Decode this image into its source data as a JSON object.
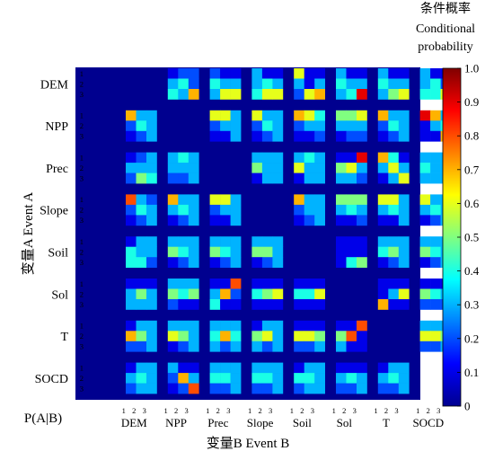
{
  "chart_data": {
    "type": "heatmap",
    "ylabel": "变量A Event A",
    "xlabel": "变量B Event B",
    "corner_label": "P(A|B)",
    "colorbar_title": [
      "条件概率",
      "Conditional",
      "probability"
    ],
    "colorbar_ticks": [
      "0",
      "0.1",
      "0.2",
      "0.3",
      "0.4",
      "0.5",
      "0.6",
      "0.7",
      "0.8",
      "0.9",
      "1.0"
    ],
    "value_range": [
      0,
      1
    ],
    "variables": [
      "DEM",
      "NPP",
      "Prec",
      "Slope",
      "Soil",
      "Sol",
      "T",
      "SOCD"
    ],
    "levels": [
      "1",
      "2",
      "3"
    ],
    "colormap": [
      "#00008f",
      "#0000ff",
      "#0080ff",
      "#00ffff",
      "#80ff80",
      "#ffff00",
      "#ff8000",
      "#ff0000",
      "#800000"
    ],
    "cells": [
      [
        null,
        [
          [
            0.1,
            0.2,
            0.2
          ],
          [
            0.3,
            0.4,
            0.2
          ],
          [
            0.4,
            0.3,
            0.7
          ]
        ],
        [
          [
            0.2,
            0.1,
            0.1
          ],
          [
            0.4,
            0.3,
            0.3
          ],
          [
            0.3,
            0.6,
            0.6
          ]
        ],
        [
          [
            0.3,
            0.1,
            0.1
          ],
          [
            0.3,
            0.4,
            0.3
          ],
          [
            0.4,
            0.6,
            0.6
          ]
        ],
        [
          [
            0.6,
            0.1,
            0.1
          ],
          [
            0.3,
            0.1,
            0.3
          ],
          [
            0.2,
            0.6,
            0.7
          ]
        ],
        [
          [
            0.3,
            0.1,
            0.1
          ],
          [
            0.4,
            0.3,
            0.3
          ],
          [
            0.3,
            0.4,
            0.9
          ]
        ],
        [
          [
            0.3,
            0.1,
            0.1
          ],
          [
            0.4,
            0.3,
            0.3
          ],
          [
            0.3,
            0.5,
            0.6
          ]
        ],
        [
          [
            0.3,
            0.1,
            0.1
          ],
          [
            0.3,
            0.4,
            0.2
          ],
          [
            0.4,
            0.4,
            0.6
          ]
        ]
      ],
      [
        [
          [
            0.7,
            0.3,
            0.3
          ],
          [
            0.2,
            0.4,
            0.3
          ],
          [
            0.1,
            0.2,
            0.3
          ]
        ],
        null,
        [
          [
            0.6,
            0.6,
            0.3
          ],
          [
            0.2,
            0.3,
            0.3
          ],
          [
            0.1,
            0.1,
            0.3
          ]
        ],
        [
          [
            0.6,
            0.3,
            0.3
          ],
          [
            0.2,
            0.4,
            0.3
          ],
          [
            0.1,
            0.2,
            0.3
          ]
        ],
        [
          [
            0.7,
            0.6,
            0.4
          ],
          [
            0.2,
            0.3,
            0.3
          ],
          [
            0.1,
            0.1,
            0.2
          ]
        ],
        [
          [
            0.5,
            0.5,
            0.6
          ],
          [
            0.3,
            0.3,
            0.3
          ],
          [
            0.1,
            0.2,
            0.2
          ]
        ],
        [
          [
            0.7,
            0.3,
            0.3
          ],
          [
            0.2,
            0.4,
            0.3
          ],
          [
            0.1,
            0.2,
            0.3
          ]
        ],
        [
          [
            0.9,
            0.7,
            0.3
          ],
          [
            0.1,
            0.3,
            0.4
          ],
          [
            0.1,
            0.1,
            0.7
          ]
        ]
      ],
      [
        [
          [
            0.1,
            0.2,
            0.3
          ],
          [
            0.3,
            0.3,
            0.3
          ],
          [
            0.2,
            0.5,
            0.4
          ]
        ],
        [
          [
            0.3,
            0.4,
            0.3
          ],
          [
            0.3,
            0.3,
            0.3
          ],
          [
            0.2,
            0.2,
            0.3
          ]
        ],
        null,
        [
          [
            0.3,
            0.3,
            0.3
          ],
          [
            0.5,
            0.3,
            0.3
          ],
          [
            0.1,
            0.3,
            0.3
          ]
        ],
        [
          [
            0.3,
            0.4,
            0.3
          ],
          [
            0.6,
            0.3,
            0.3
          ],
          [
            0.1,
            0.3,
            0.3
          ]
        ],
        [
          [
            0.1,
            0.1,
            0.9
          ],
          [
            0.5,
            0.6,
            0.3
          ],
          [
            0.3,
            0.3,
            0.2
          ]
        ],
        [
          [
            0.7,
            0.4,
            0.1
          ],
          [
            0.3,
            0.6,
            0.3
          ],
          [
            0.1,
            0.3,
            0.6
          ]
        ],
        [
          [
            0.3,
            0.3,
            0.3
          ],
          [
            0.4,
            0.3,
            0.3
          ],
          [
            0.3,
            0.3,
            0.3
          ]
        ]
      ],
      [
        [
          [
            0.8,
            0.3,
            0.2
          ],
          [
            0.2,
            0.4,
            0.3
          ],
          [
            0.1,
            0.2,
            0.3
          ]
        ],
        [
          [
            0.7,
            0.3,
            0.3
          ],
          [
            0.3,
            0.4,
            0.3
          ],
          [
            0.1,
            0.2,
            0.3
          ]
        ],
        [
          [
            0.6,
            0.6,
            0.3
          ],
          [
            0.2,
            0.3,
            0.3
          ],
          [
            0.1,
            0.1,
            0.3
          ]
        ],
        null,
        [
          [
            0.7,
            0.3,
            0.3
          ],
          [
            0.2,
            0.3,
            0.3
          ],
          [
            0.1,
            0.2,
            0.3
          ]
        ],
        [
          [
            0.5,
            0.5,
            0.5
          ],
          [
            0.3,
            0.4,
            0.3
          ],
          [
            0.1,
            0.1,
            0.2
          ]
        ],
        [
          [
            0.6,
            0.6,
            0.3
          ],
          [
            0.3,
            0.4,
            0.3
          ],
          [
            0.1,
            0.1,
            0.3
          ]
        ],
        [
          [
            0.6,
            0.3,
            0.3
          ],
          [
            0.3,
            0.4,
            0.3
          ],
          [
            0.1,
            0.2,
            0.3
          ]
        ]
      ],
      [
        [
          [
            0.1,
            0.3,
            0.3
          ],
          [
            0.4,
            0.3,
            0.3
          ],
          [
            0.4,
            0.4,
            0.2
          ]
        ],
        [
          [
            0.3,
            0.3,
            0.3
          ],
          [
            0.5,
            0.4,
            0.3
          ],
          [
            0.1,
            0.2,
            0.3
          ]
        ],
        [
          [
            0.3,
            0.3,
            0.3
          ],
          [
            0.5,
            0.4,
            0.3
          ],
          [
            0.1,
            0.2,
            0.3
          ]
        ],
        [
          [
            0.3,
            0.3,
            0.3
          ],
          [
            0.5,
            0.5,
            0.3
          ],
          [
            0.1,
            0.2,
            0.3
          ]
        ],
        null,
        [
          [
            0.1,
            0.1,
            0.1
          ],
          [
            0.1,
            0.1,
            0.1
          ],
          [
            0.1,
            0.4,
            0.5
          ]
        ],
        [
          [
            0.3,
            0.3,
            0.3
          ],
          [
            0.4,
            0.5,
            0.3
          ],
          [
            0.1,
            0.2,
            0.3
          ]
        ],
        [
          [
            0.3,
            0.3,
            0.3
          ],
          [
            0.5,
            0.4,
            0.3
          ],
          [
            0.1,
            0.2,
            0.3
          ]
        ]
      ],
      [
        [
          [
            0.1,
            0.1,
            0.1
          ],
          [
            0.3,
            0.5,
            0.3
          ],
          [
            0.3,
            0.3,
            0.3
          ]
        ],
        [
          [
            0.3,
            0.3,
            0.3
          ],
          [
            0.5,
            0.4,
            0.5
          ],
          [
            0.2,
            0.1,
            0.1
          ]
        ],
        [
          [
            0.1,
            0.1,
            0.8
          ],
          [
            0.3,
            0.7,
            0.2
          ],
          [
            0.4,
            0.1,
            0.1
          ]
        ],
        [
          [
            0.1,
            0.1,
            0.1
          ],
          [
            0.4,
            0.5,
            0.6
          ],
          [
            0.1,
            0.1,
            0.1
          ]
        ],
        [
          [
            0.1,
            0.1,
            0.1
          ],
          [
            0.4,
            0.4,
            0.6
          ],
          [
            0.1,
            0.1,
            0.1
          ]
        ],
        null,
        [
          [
            0.1,
            0.1,
            0.1
          ],
          [
            0.1,
            0.3,
            0.6
          ],
          [
            0.7,
            0.1,
            0.1
          ]
        ],
        [
          [
            0.1,
            0.1,
            0.1
          ],
          [
            0.5,
            0.4,
            0.3
          ],
          [
            0.2,
            0.2,
            0.2
          ]
        ]
      ],
      [
        [
          [
            0.1,
            0.3,
            0.3
          ],
          [
            0.7,
            0.5,
            0.3
          ],
          [
            0.2,
            0.2,
            0.3
          ]
        ],
        [
          [
            0.3,
            0.3,
            0.3
          ],
          [
            0.6,
            0.5,
            0.3
          ],
          [
            0.1,
            0.2,
            0.3
          ]
        ],
        [
          [
            0.3,
            0.3,
            0.3
          ],
          [
            0.4,
            0.7,
            0.4
          ],
          [
            0.3,
            0.2,
            0.3
          ]
        ],
        [
          [
            0.1,
            0.3,
            0.3
          ],
          [
            0.5,
            0.6,
            0.3
          ],
          [
            0.3,
            0.2,
            0.3
          ]
        ],
        [
          [
            0.1,
            0.1,
            0.1
          ],
          [
            0.6,
            0.6,
            0.5
          ],
          [
            0.2,
            0.2,
            0.3
          ]
        ],
        [
          [
            0.1,
            0.1,
            0.8
          ],
          [
            0.5,
            0.8,
            0.1
          ],
          [
            0.3,
            0.1,
            0.1
          ]
        ],
        null,
        [
          [
            0.3,
            0.3,
            0.3
          ],
          [
            0.6,
            0.6,
            0.5
          ],
          [
            0.2,
            0.2,
            0.3
          ]
        ]
      ],
      [
        [
          [
            0.1,
            0.3,
            0.3
          ],
          [
            0.3,
            0.4,
            0.3
          ],
          [
            0.2,
            0.3,
            0.3
          ]
        ],
        [
          [
            0.3,
            0.1,
            0.1
          ],
          [
            0.2,
            0.7,
            0.3
          ],
          [
            0.1,
            0.2,
            0.8
          ]
        ],
        [
          [
            0.3,
            0.3,
            0.3
          ],
          [
            0.4,
            0.4,
            0.3
          ],
          [
            0.2,
            0.2,
            0.3
          ]
        ],
        [
          [
            0.3,
            0.3,
            0.3
          ],
          [
            0.4,
            0.4,
            0.3
          ],
          [
            0.2,
            0.2,
            0.3
          ]
        ],
        [
          [
            0.1,
            0.3,
            0.3
          ],
          [
            0.4,
            0.4,
            0.3
          ],
          [
            0.2,
            0.3,
            0.3
          ]
        ],
        [
          [
            0.1,
            0.1,
            0.1
          ],
          [
            0.3,
            0.4,
            0.3
          ],
          [
            0.2,
            0.2,
            0.3
          ]
        ],
        [
          [
            0.1,
            0.3,
            0.3
          ],
          [
            0.3,
            0.4,
            0.3
          ],
          [
            0.2,
            0.2,
            0.3
          ]
        ],
        null
      ]
    ]
  }
}
